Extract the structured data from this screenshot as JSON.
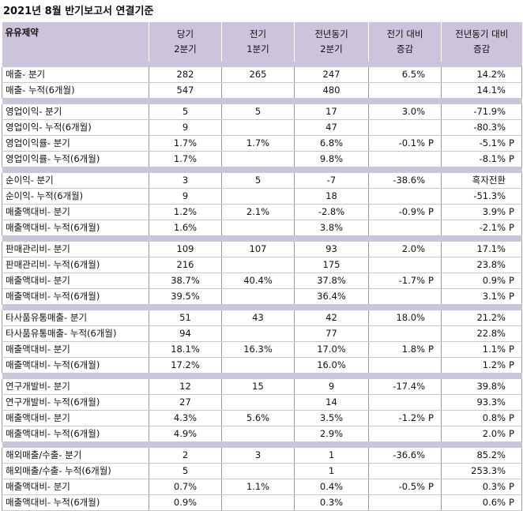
{
  "title": "2021년 8월 반기보고서 연결기준",
  "headers": {
    "company": "유유제약",
    "col1": [
      "당기",
      "2분기"
    ],
    "col2": [
      "전기",
      "1분기"
    ],
    "col3": [
      "전년동기",
      "2분기"
    ],
    "col4": [
      "전기 대비",
      "증감"
    ],
    "col5": [
      "전년동기 대비",
      "증감"
    ]
  },
  "groups": [
    {
      "rows": [
        {
          "label": "매출- 분기",
          "v1": "282",
          "v2": "265",
          "v3": "247",
          "v4": "6.5%",
          "v4p": "",
          "v5": "14.2%",
          "v5p": ""
        },
        {
          "label": "매출- 누적(6개월)",
          "v1": "547",
          "v2": "",
          "v3": "480",
          "v4": "",
          "v4p": "",
          "v5": "14.1%",
          "v5p": ""
        }
      ]
    },
    {
      "rows": [
        {
          "label": "영업이익- 분기",
          "v1": "5",
          "v2": "5",
          "v3": "17",
          "v4": "3.0%",
          "v4p": "",
          "v5": "-71.9%",
          "v5p": ""
        },
        {
          "label": "영업이익- 누적(6개월)",
          "v1": "9",
          "v2": "",
          "v3": "47",
          "v4": "",
          "v4p": "",
          "v5": "-80.3%",
          "v5p": ""
        },
        {
          "label": "영업이익률- 분기",
          "v1": "1.7%",
          "v2": "1.7%",
          "v3": "6.8%",
          "v4": "-0.1%",
          "v4p": "P",
          "v5": "-5.1%",
          "v5p": "P"
        },
        {
          "label": "영업이익률- 누적(6개월)",
          "v1": "1.7%",
          "v2": "",
          "v3": "9.8%",
          "v4": "",
          "v4p": "",
          "v5": "-8.1%",
          "v5p": "P"
        }
      ]
    },
    {
      "rows": [
        {
          "label": "순이익- 분기",
          "v1": "3",
          "v2": "5",
          "v3": "-7",
          "v4": "-38.6%",
          "v4p": "",
          "v5": "흑자전환",
          "v5p": ""
        },
        {
          "label": "순이익- 누적(6개월)",
          "v1": "9",
          "v2": "",
          "v3": "18",
          "v4": "",
          "v4p": "",
          "v5": "-51.3%",
          "v5p": ""
        },
        {
          "label": "매출액대비- 분기",
          "v1": "1.2%",
          "v2": "2.1%",
          "v3": "-2.8%",
          "v4": "-0.9%",
          "v4p": "P",
          "v5": "3.9%",
          "v5p": "P"
        },
        {
          "label": "매출액대비- 누적(6개월)",
          "v1": "1.6%",
          "v2": "",
          "v3": "3.8%",
          "v4": "",
          "v4p": "",
          "v5": "-2.1%",
          "v5p": "P"
        }
      ]
    },
    {
      "rows": [
        {
          "label": "판매관리비- 분기",
          "v1": "109",
          "v2": "107",
          "v3": "93",
          "v4": "2.0%",
          "v4p": "",
          "v5": "17.1%",
          "v5p": ""
        },
        {
          "label": "판매관리비- 누적(6개월)",
          "v1": "216",
          "v2": "",
          "v3": "175",
          "v4": "",
          "v4p": "",
          "v5": "23.8%",
          "v5p": ""
        },
        {
          "label": "매출액대비- 분기",
          "v1": "38.7%",
          "v2": "40.4%",
          "v3": "37.8%",
          "v4": "-1.7%",
          "v4p": "P",
          "v5": "0.9%",
          "v5p": "P"
        },
        {
          "label": "매출액대비- 누적(6개월)",
          "v1": "39.5%",
          "v2": "",
          "v3": "36.4%",
          "v4": "",
          "v4p": "",
          "v5": "3.1%",
          "v5p": "P"
        }
      ]
    },
    {
      "rows": [
        {
          "label": "타사품유통매출- 분기",
          "v1": "51",
          "v2": "43",
          "v3": "42",
          "v4": "18.0%",
          "v4p": "",
          "v5": "21.2%",
          "v5p": ""
        },
        {
          "label": "타사품유통매출- 누적(6개월)",
          "v1": "94",
          "v2": "",
          "v3": "77",
          "v4": "",
          "v4p": "",
          "v5": "22.8%",
          "v5p": ""
        },
        {
          "label": "매출액대비- 분기",
          "v1": "18.1%",
          "v2": "16.3%",
          "v3": "17.0%",
          "v4": "1.8%",
          "v4p": "P",
          "v5": "1.1%",
          "v5p": "P"
        },
        {
          "label": "매출액대비- 누적(6개월)",
          "v1": "17.2%",
          "v2": "",
          "v3": "16.0%",
          "v4": "",
          "v4p": "",
          "v5": "1.2%",
          "v5p": "P"
        }
      ]
    },
    {
      "rows": [
        {
          "label": "연구개발비- 분기",
          "v1": "12",
          "v2": "15",
          "v3": "9",
          "v4": "-17.4%",
          "v4p": "",
          "v5": "39.8%",
          "v5p": ""
        },
        {
          "label": "연구개발비- 누적(6개월)",
          "v1": "27",
          "v2": "",
          "v3": "14",
          "v4": "",
          "v4p": "",
          "v5": "93.3%",
          "v5p": ""
        },
        {
          "label": "매출액대비- 분기",
          "v1": "4.3%",
          "v2": "5.6%",
          "v3": "3.5%",
          "v4": "-1.2%",
          "v4p": "P",
          "v5": "0.8%",
          "v5p": "P"
        },
        {
          "label": "매출액대비- 누적(6개월)",
          "v1": "4.9%",
          "v2": "",
          "v3": "2.9%",
          "v4": "",
          "v4p": "",
          "v5": "2.0%",
          "v5p": "P"
        }
      ]
    },
    {
      "rows": [
        {
          "label": "해외매출/수출- 분기",
          "v1": "2",
          "v2": "3",
          "v3": "1",
          "v4": "-36.6%",
          "v4p": "",
          "v5": "85.2%",
          "v5p": ""
        },
        {
          "label": "해외매출/수출- 누적(6개월)",
          "v1": "5",
          "v2": "",
          "v3": "1",
          "v4": "",
          "v4p": "",
          "v5": "253.3%",
          "v5p": ""
        },
        {
          "label": "매출액대비- 분기",
          "v1": "0.7%",
          "v2": "1.1%",
          "v3": "0.4%",
          "v4": "-0.5%",
          "v4p": "P",
          "v5": "0.3%",
          "v5p": "P"
        },
        {
          "label": "매출액대비- 누적(6개월)",
          "v1": "0.9%",
          "v2": "",
          "v3": "0.3%",
          "v4": "",
          "v4p": "",
          "v5": "0.6%",
          "v5p": "P"
        }
      ]
    }
  ]
}
